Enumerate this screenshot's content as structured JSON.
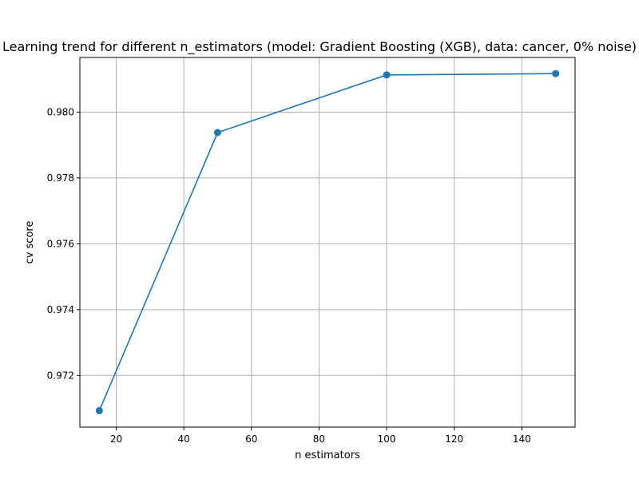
{
  "chart_data": {
    "type": "line",
    "title": "Learning trend for different n_estimators (model: Gradient Boosting (XGB), data: cancer, 0% noise)",
    "xlabel": "n estimators",
    "ylabel": "cv score",
    "xlim": [
      9.25,
      155.75
    ],
    "ylim": [
      0.97043,
      0.98166
    ],
    "x_ticks": [
      20,
      40,
      60,
      80,
      100,
      120,
      140
    ],
    "y_ticks": [
      0.972,
      0.974,
      0.976,
      0.978,
      0.98
    ],
    "y_tick_labels": [
      "0.972",
      "0.974",
      "0.976",
      "0.978",
      "0.980"
    ],
    "grid": true,
    "series": [
      {
        "x": [
          15,
          50,
          100,
          150
        ],
        "y": [
          0.97093,
          0.97938,
          0.98113,
          0.98117
        ],
        "color": "#1f77b4",
        "marker": "circle"
      }
    ]
  }
}
